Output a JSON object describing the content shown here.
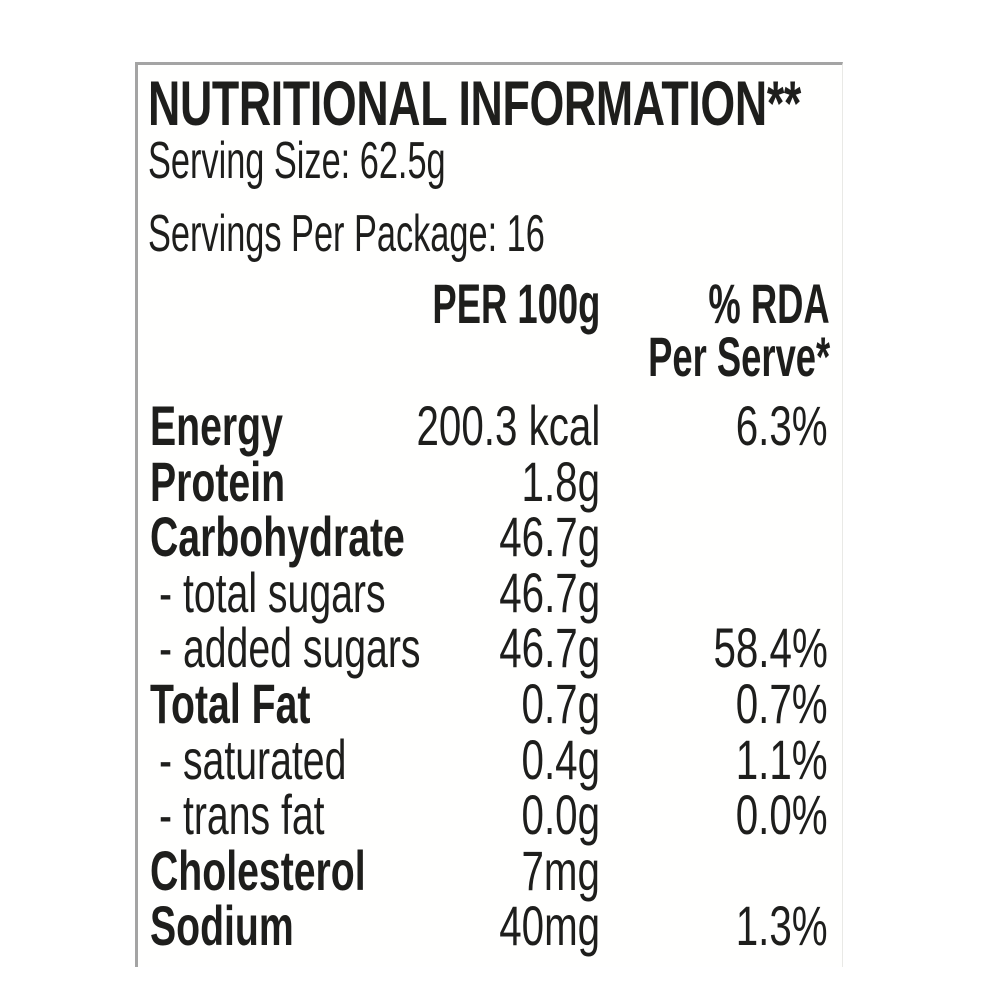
{
  "label": {
    "title": "NUTRITIONAL INFORMATION**",
    "serving_size": "Serving Size: 62.5g",
    "servings_per_package": "Servings Per Package: 16",
    "columns": {
      "per_100g": "PER 100g",
      "rda_line1": "% RDA",
      "rda_line2": "Per Serve*"
    },
    "rows": [
      {
        "label": "Energy",
        "value": "200.3 kcal",
        "rda": "6.3%"
      },
      {
        "label": "Protein",
        "value": "1.8g",
        "rda": ""
      },
      {
        "label": "Carbohydrate",
        "value": "46.7g",
        "rda": ""
      },
      {
        "label": "- total sugars",
        "value": "46.7g",
        "rda": ""
      },
      {
        "label": "- added sugars",
        "value": "46.7g",
        "rda": "58.4%"
      },
      {
        "label": "Total Fat",
        "value": "0.7g",
        "rda": "0.7%"
      },
      {
        "label": "- saturated",
        "value": "0.4g",
        "rda": "1.1%"
      },
      {
        "label": "- trans fat",
        "value": "0.0g",
        "rda": "0.0%"
      },
      {
        "label": "Cholesterol",
        "value": "7mg",
        "rda": ""
      },
      {
        "label": "Sodium",
        "value": "40mg",
        "rda": "1.3%"
      }
    ],
    "colors": {
      "text": "#1e1e1c",
      "border": "#a4a4a4",
      "background": "#fffffe"
    }
  }
}
